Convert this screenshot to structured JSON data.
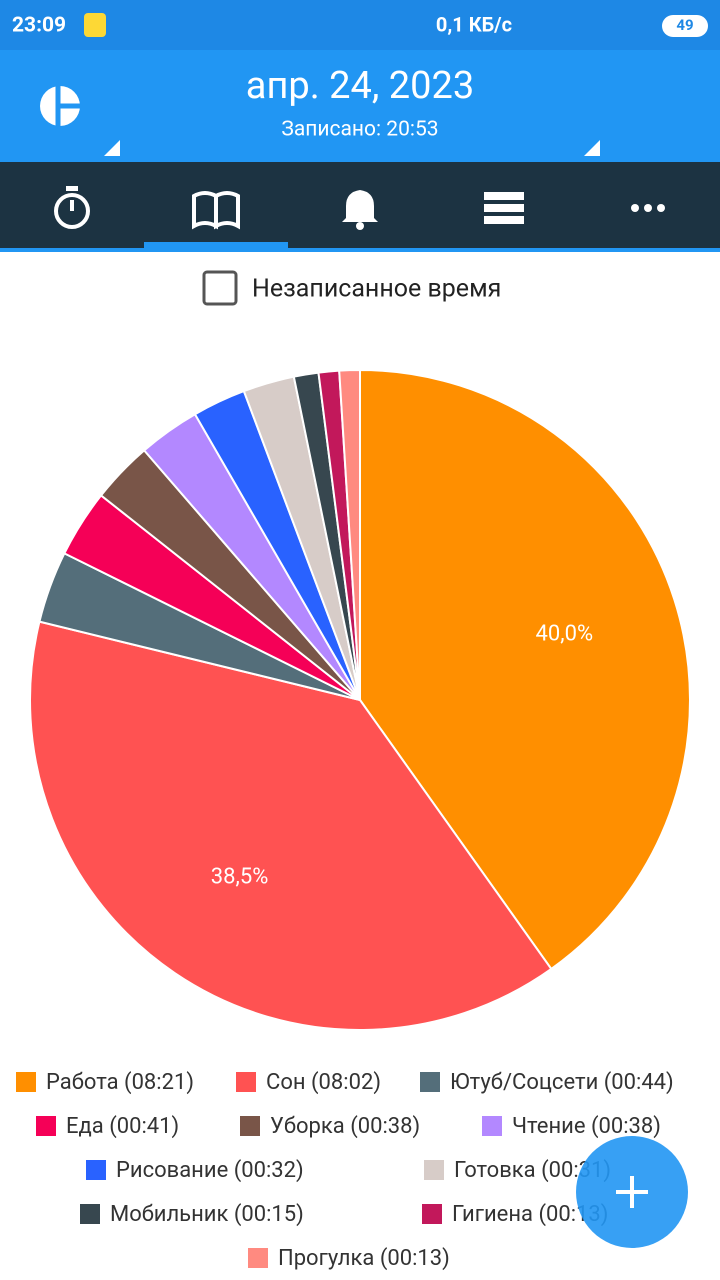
{
  "status_bar": {
    "time": "23:09",
    "speed": "0,1 КБ/с",
    "battery": "49"
  },
  "header": {
    "date": "апр. 24, 2023",
    "recorded": "Записано: 20:53"
  },
  "filter": {
    "checkbox_label": "Незаписанное время"
  },
  "chart_data": {
    "type": "pie",
    "categories": [
      "Работа (08:21)",
      "Сон (08:02)",
      "Ютуб/Соцсети (00:44)",
      "Еда (00:41)",
      "Уборка (00:38)",
      "Чтение (00:38)",
      "Рисование  (00:32)",
      "Готовка (00:31)",
      "Мобильник  (00:15)",
      "Гигиена  (00:13)",
      "Прогулка (00:13)"
    ],
    "values": [
      40.0,
      38.5,
      3.5,
      3.3,
      3.0,
      3.0,
      2.6,
      2.5,
      1.2,
      1.0,
      1.0
    ],
    "value_labels": [
      "40,0%",
      "38,5%",
      null,
      null,
      null,
      null,
      null,
      null,
      null,
      null,
      null
    ],
    "colors": [
      "#ff8f00",
      "#ff5252",
      "#546e7a",
      "#f50057",
      "#795548",
      "#b388ff",
      "#2962ff",
      "#d7ccc8",
      "#37474f",
      "#c2185b",
      "#ff8a80"
    ]
  }
}
